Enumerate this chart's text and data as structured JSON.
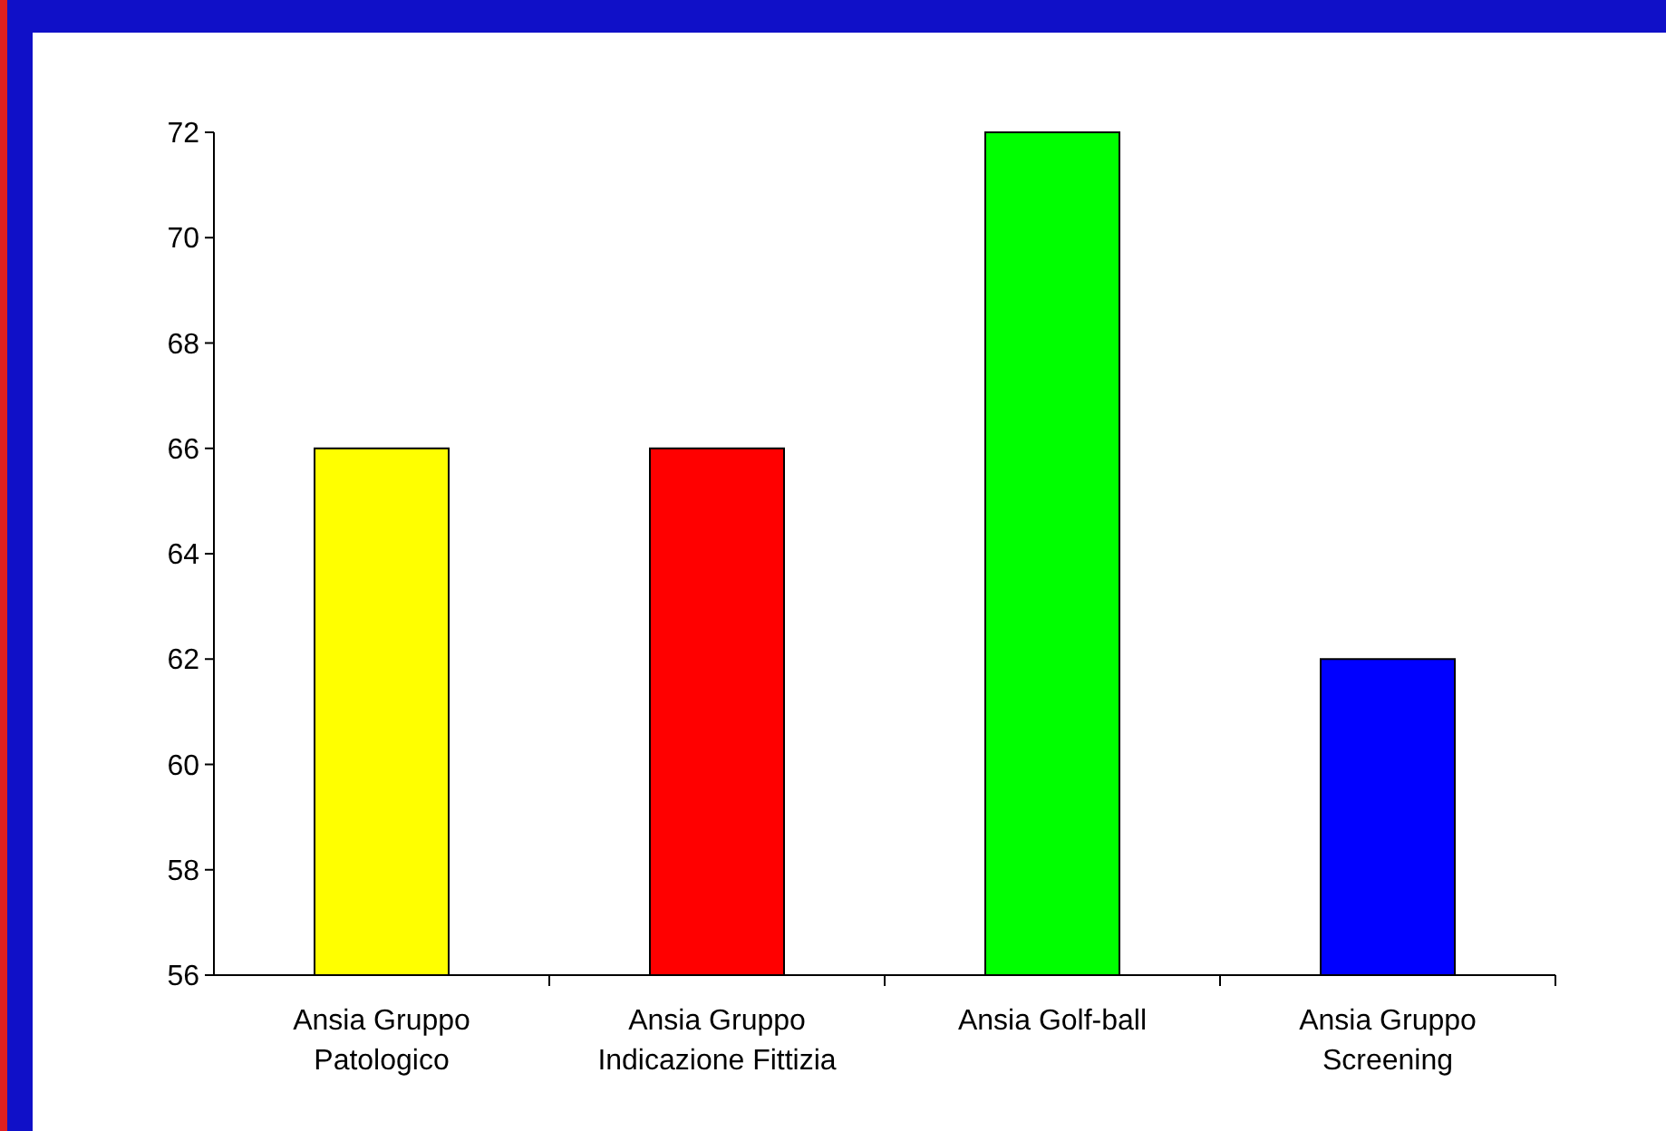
{
  "chart_data": {
    "type": "bar",
    "categories": [
      "Ansia Gruppo Patologico",
      "Ansia Gruppo Indicazione Fittizia",
      "Ansia Golf-ball",
      "Ansia Gruppo Screening"
    ],
    "values": [
      66,
      66,
      72,
      62
    ],
    "colors": [
      "#ffff00",
      "#ff0000",
      "#00ff00",
      "#0000ff"
    ],
    "ylim": [
      56,
      72
    ],
    "yticks": [
      56,
      58,
      60,
      62,
      64,
      66,
      68,
      70,
      72
    ],
    "grid": false,
    "legend": false
  }
}
